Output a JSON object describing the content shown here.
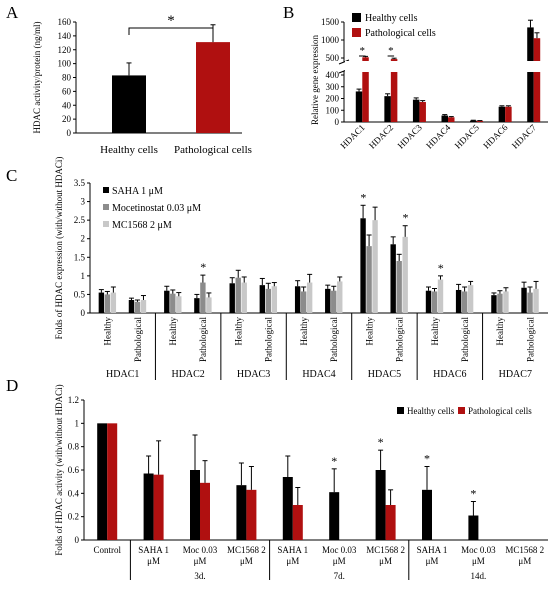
{
  "colors": {
    "healthy": "#000000",
    "pathological": "#b01010",
    "saha": "#000000",
    "mocetinostat": "#8c8c8c",
    "mc1568": "#c8c8c8",
    "axis": "#000000",
    "grid": "#d9d9d9"
  },
  "chart_data": [
    {
      "panel": "A",
      "type": "bar",
      "categories": [
        "Healthy cells",
        "Pathological cells"
      ],
      "values": [
        83,
        131
      ],
      "errors": [
        18,
        25
      ],
      "ylabel": "HDAC activity/protein (ng/ml)",
      "ylim": [
        0,
        160
      ],
      "yticks": [
        0,
        20,
        40,
        60,
        80,
        100,
        120,
        140,
        160
      ],
      "significance": "*",
      "grid": false
    },
    {
      "panel": "B",
      "type": "bar",
      "categories": [
        "HDAC1",
        "HDAC2",
        "HDAC3",
        "HDAC4",
        "HDAC5",
        "HDAC6",
        "HDAC7"
      ],
      "series": [
        {
          "name": "Healthy cells",
          "values": [
            260,
            220,
            190,
            55,
            12,
            130,
            1350
          ],
          "errors": [
            20,
            20,
            15,
            8,
            3,
            8,
            200
          ]
        },
        {
          "name": "Pathological cells",
          "values": [
            520,
            470,
            170,
            40,
            10,
            130,
            1050
          ],
          "errors": [
            25,
            25,
            12,
            6,
            2,
            8,
            150
          ]
        }
      ],
      "ylabel": "Relative gene expression",
      "yticks_lower": [
        0,
        100,
        200,
        300,
        400
      ],
      "yticks_upper": [
        500,
        1000,
        1500
      ],
      "ylim": [
        0,
        1500
      ],
      "axis_break": [
        400,
        500
      ],
      "significance": [
        "HDAC1",
        "HDAC2"
      ],
      "legend_position": "top-right",
      "grid": false
    },
    {
      "panel": "C",
      "type": "bar",
      "genes": [
        "HDAC1",
        "HDAC2",
        "HDAC3",
        "HDAC4",
        "HDAC5",
        "HDAC6",
        "HDAC7"
      ],
      "conditions": [
        "Healthy",
        "Pathological"
      ],
      "series": [
        {
          "name": "SAHA 1 μM",
          "values": [
            0.55,
            0.35,
            0.6,
            0.4,
            0.8,
            0.75,
            0.72,
            0.65,
            2.55,
            1.85,
            0.6,
            0.62,
            0.48,
            0.68
          ],
          "errors": [
            0.08,
            0.05,
            0.12,
            0.1,
            0.15,
            0.18,
            0.15,
            0.1,
            0.35,
            0.2,
            0.1,
            0.15,
            0.06,
            0.15
          ]
        },
        {
          "name": "Mocetinostat 0.03  μM",
          "values": [
            0.5,
            0.3,
            0.52,
            0.82,
            0.95,
            0.65,
            0.58,
            0.6,
            1.8,
            1.4,
            0.58,
            0.58,
            0.52,
            0.55
          ],
          "errors": [
            0.08,
            0.05,
            0.1,
            0.2,
            0.2,
            0.15,
            0.12,
            0.12,
            0.3,
            0.18,
            0.08,
            0.12,
            0.08,
            0.15
          ]
        },
        {
          "name": "MC1568  2 μM",
          "values": [
            0.55,
            0.35,
            0.45,
            0.42,
            0.82,
            0.72,
            0.82,
            0.85,
            2.5,
            2.05,
            0.9,
            0.75,
            0.58,
            0.65
          ],
          "errors": [
            0.15,
            0.12,
            0.1,
            0.12,
            0.15,
            0.1,
            0.22,
            0.12,
            0.35,
            0.3,
            0.1,
            0.1,
            0.1,
            0.2
          ]
        }
      ],
      "ylabel": "Folds of HDAC expression (with/without HDACi)",
      "ylim": [
        0,
        3.5
      ],
      "yticks": [
        0,
        0.5,
        1,
        1.5,
        2,
        2.5,
        3,
        3.5
      ],
      "significance": [
        {
          "gene": "HDAC2",
          "condition": "Pathological",
          "series": 1
        },
        {
          "gene": "HDAC5",
          "condition": "Healthy",
          "series": 0
        },
        {
          "gene": "HDAC5",
          "condition": "Pathological",
          "series": 2
        },
        {
          "gene": "HDAC6",
          "condition": "Healthy",
          "series": 2
        }
      ],
      "legend_position": "top-left",
      "grid": false
    },
    {
      "panel": "D",
      "type": "bar",
      "categories": [
        "Control",
        "SAHA  1 μM",
        "Moc 0.03 μM",
        "MC1568 2 μM",
        "SAHA  1 μM",
        "Moc 0.03 μM",
        "MC1568 2 μM",
        "SAHA  1 μM",
        "Moc 0.03 μM",
        "MC1568 2 μM"
      ],
      "groups": [
        {
          "label": "3d.",
          "from": 1,
          "to": 3
        },
        {
          "label": "7d.",
          "from": 4,
          "to": 6
        },
        {
          "label": "14d.",
          "from": 7,
          "to": 9
        }
      ],
      "series": [
        {
          "name": "Healthy cells",
          "values": [
            1.0,
            0.57,
            0.6,
            0.47,
            0.54,
            0.41,
            0.6,
            0.43,
            0.21,
            null
          ],
          "errors": [
            0,
            0.15,
            0.3,
            0.19,
            0.18,
            0.2,
            0.17,
            0.2,
            0.12,
            null
          ]
        },
        {
          "name": "Pathological cells",
          "values": [
            1.0,
            0.56,
            0.49,
            0.43,
            0.3,
            null,
            0.3,
            null,
            null,
            null
          ],
          "errors": [
            0,
            0.29,
            0.19,
            0.2,
            0.15,
            null,
            0.13,
            null,
            null,
            null
          ]
        }
      ],
      "ylabel": "Folds of HDAC activity (with/without HDACi)",
      "ylim": [
        0,
        1.2
      ],
      "yticks": [
        0,
        0.2,
        0.4,
        0.6,
        0.8,
        1,
        1.2
      ],
      "significance": [
        {
          "index": 5,
          "series": 0
        },
        {
          "index": 6,
          "series": 0
        },
        {
          "index": 7,
          "series": 0
        },
        {
          "index": 8,
          "series": 0
        }
      ],
      "legend_position": "top-right",
      "grid": false
    }
  ],
  "panel_labels": [
    "A",
    "B",
    "C",
    "D"
  ]
}
